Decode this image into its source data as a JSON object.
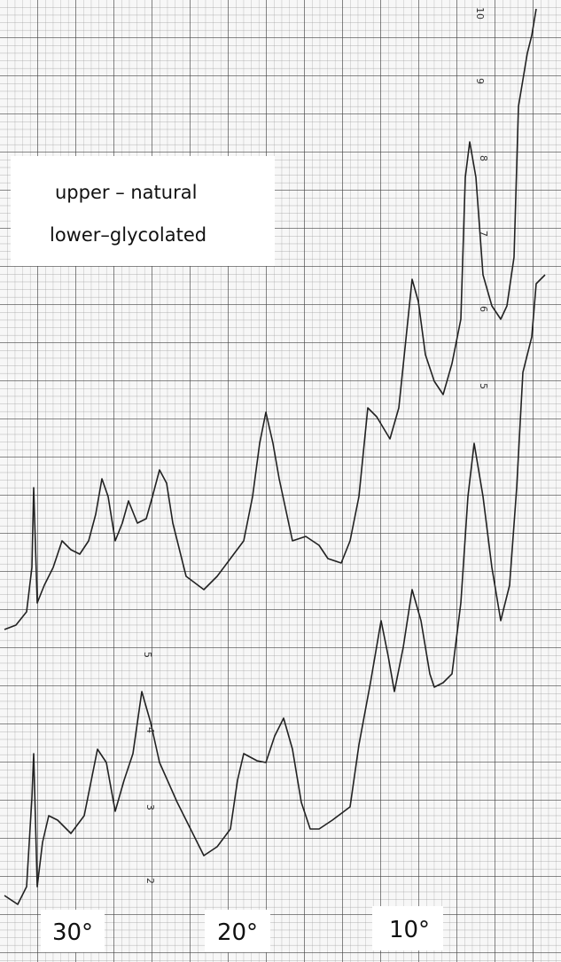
{
  "legend": {
    "line1": "upper – natural",
    "line2": "lower–glycolated"
  },
  "angle_labels": [
    "30°",
    "20°",
    "10°"
  ],
  "scale_upper": [
    "10",
    "9",
    "8",
    "7",
    "6",
    "5"
  ],
  "scale_lower": [
    "5",
    "4",
    "3",
    "2"
  ]
}
